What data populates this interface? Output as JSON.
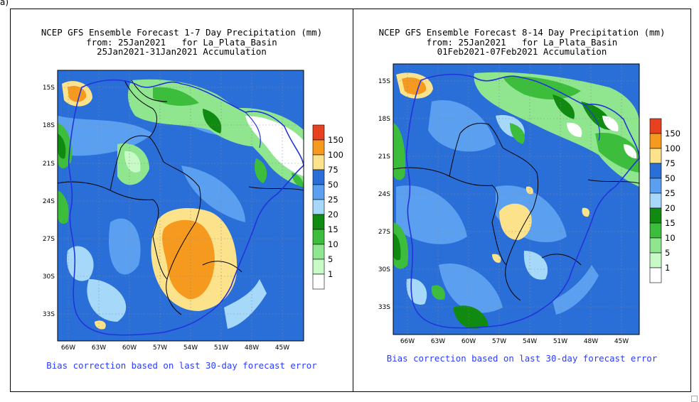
{
  "corner_label": "a)",
  "colors": {
    "bin_1": "#ffffff",
    "bin_5": "#c8fac8",
    "bin_10": "#8fe68f",
    "bin_15": "#3cbe3c",
    "bin_20": "#118a11",
    "bin_25": "#a6d8fa",
    "bin_50": "#5a9ff0",
    "bin_75": "#2a6fd8",
    "bin_100": "#fde28c",
    "bin_150": "#f59a1e",
    "bin_top": "#e8411f",
    "border_blue": "#2233dd",
    "country_line": "#000000",
    "footer_text": "#2a3cff"
  },
  "legend": {
    "levels": [
      "150",
      "100",
      "75",
      "50",
      "25",
      "20",
      "15",
      "10",
      "5",
      "1"
    ]
  },
  "axes": {
    "lat_labels": [
      "15S",
      "18S",
      "21S",
      "24S",
      "27S",
      "30S",
      "33S"
    ],
    "lon_labels": [
      "66W",
      "63W",
      "60W",
      "57W",
      "54W",
      "51W",
      "48W",
      "45W"
    ]
  },
  "panels": [
    {
      "title_line1": "NCEP GFS Ensemble Forecast 1-7 Day Precipitation (mm)",
      "title_line2": "from: 25Jan2021   for La_Plata_Basin",
      "title_line3": "25Jan2021-31Jan2021 Accumulation",
      "footer": "Bias correction based on last 30-day forecast error"
    },
    {
      "title_line1": "NCEP GFS Ensemble Forecast 8-14 Day Precipitation (mm)",
      "title_line2": "from: 25Jan2021   for La_Plata_Basin",
      "title_line3": "01Feb2021-07Feb2021 Accumulation",
      "footer": "Bias correction based on last 30-day forecast error"
    }
  ]
}
